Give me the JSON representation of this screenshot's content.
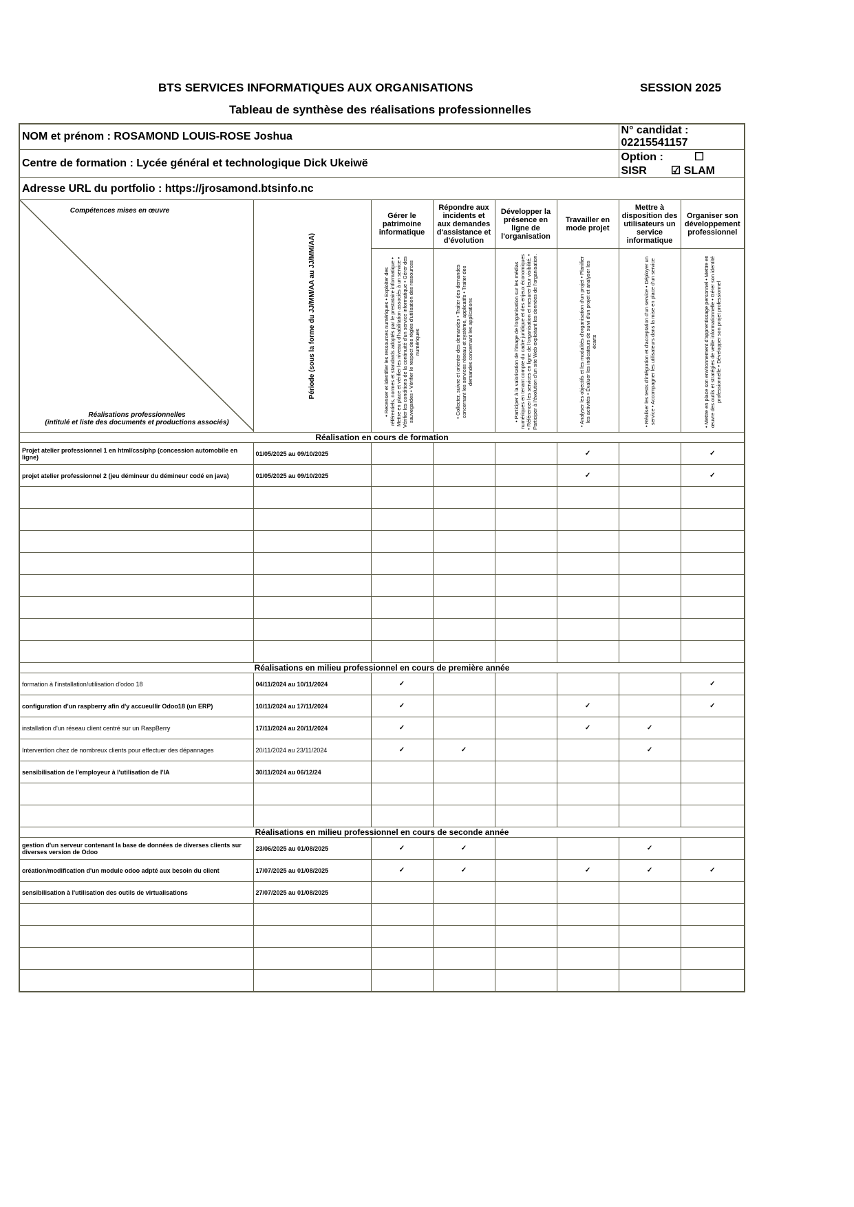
{
  "header": {
    "title": "BTS SERVICES INFORMATIQUES AUX ORGANISATIONS",
    "session": "SESSION 2025",
    "subtitle": "Tableau de synthèse des réalisations professionnelles"
  },
  "identity": {
    "name": "NOM et prénom : ROSAMOND LOUIS-ROSE Joshua",
    "candidate": "N° candidat : 02215541157",
    "centre": "Centre de formation : Lycée général et technologique Dick Ukeiwë",
    "option_label": "Option :",
    "option_sisr": "☐ SISR",
    "option_slam": "☑ SLAM",
    "portfolio": "Adresse URL du portfolio : https://jrosamond.btsinfo.nc"
  },
  "grid": {
    "competences_label": "Compétences mises en œuvre",
    "realisations_label": "Réalisations professionnelles",
    "realisations_sub": "(intitulé et liste des documents et productions associés)",
    "period_label": "Période (sous la forme du JJ/MM/AA au JJ/MM/AA)"
  },
  "competences": [
    {
      "title": "Gérer le patrimoine informatique",
      "details": "• Recenser et identifier les ressources numériques • Exploiter des référentiels, normes et standards adoptés par le prestataire informatique • Mettre en place et vérifier les niveaux d'habilitation associés à un service • Vérifier les conditions de la continuité d'un service informatique • Gérer des sauvegardes • Vérifier le respect des règles d'utilisation des ressources numériques"
    },
    {
      "title": "Répondre aux incidents et aux demandes d'assistance et d'évolution",
      "details": "• Collecter, suivre et orienter des demandes • Traiter des demandes concernant les services réseau et système, applicatifs • Traiter des demandes concernant les applications"
    },
    {
      "title": "Développer la présence en ligne de l'organisation",
      "details": "• Participer à la valorisation de l'image de l'organisation sur les médias numériques en tenant compte du cadre juridique et des enjeux économiques • Référencer les services en ligne de l'organisation et mesurer leur visibilité. • Participer à l'évolution d'un site Web exploitant les données de l'organisation."
    },
    {
      "title": "Travailler en mode projet",
      "details": "• Analyser les objectifs et les modalités d'organisation d'un projet • Planifier les activités • Évaluer les indicateurs de suivi d'un projet et analyser les écarts"
    },
    {
      "title": "Mettre à disposition des utilisateurs un service informatique",
      "details": "• Réaliser les tests d'intégration et d'acceptation d'un service • Déployer un service • Accompagner les utilisateurs dans la mise en place d'un service"
    },
    {
      "title": "Organiser son développement professionnel",
      "details": "• Mettre en place son environnement d'apprentissage personnel • Mettre en œuvre des outils et stratégies de veille informationnelle • Gérer son identité professionnelle • Développer son projet professionnel"
    }
  ],
  "check_mark": "✓",
  "sections": [
    {
      "title": "Réalisation en cours de formation",
      "rows": [
        {
          "label": "Projet atelier professionnel 1 en html/css/php (concession automobile en ligne)",
          "period": "01/05/2025 au 09/10/2025",
          "checks": [
            3,
            5
          ]
        },
        {
          "label": "projet atelier professionnel 2 (jeu démineur du démineur codé en java)",
          "period": "01/05/2025 au 09/10/2025",
          "checks": [
            3,
            5
          ]
        },
        {
          "label": "",
          "period": "",
          "checks": []
        },
        {
          "label": "",
          "period": "",
          "checks": []
        },
        {
          "label": "",
          "period": "",
          "checks": []
        },
        {
          "label": "",
          "period": "",
          "checks": []
        },
        {
          "label": "",
          "period": "",
          "checks": []
        },
        {
          "label": "",
          "period": "",
          "checks": []
        },
        {
          "label": "",
          "period": "",
          "checks": []
        },
        {
          "label": "",
          "period": "",
          "checks": []
        }
      ]
    },
    {
      "title": "Réalisations en milieu professionnel en cours de première année",
      "rows": [
        {
          "label": "formation à l'installation/utilisation d'odoo 18",
          "period": "04/11/2024 au 10/11/2024",
          "checks": [
            0,
            5
          ],
          "light": true
        },
        {
          "label": "configuration d'un raspberry afin d'y accueullir Odoo18 (un ERP)",
          "period": "10/11/2024 au 17/11/2024",
          "checks": [
            0,
            3,
            5
          ]
        },
        {
          "label": "installation d'un réseau client centré sur un RaspBerry",
          "period": "17/11/2024 au 20/11/2024",
          "checks": [
            0,
            3,
            4
          ],
          "light": true
        },
        {
          "label": "Intervention chez de nombreux clients pour effectuer des dépannages",
          "period": "20/11/2024 au 23/11/2024",
          "checks": [
            0,
            1,
            4
          ],
          "light": true,
          "lightperiod": true
        },
        {
          "label": "sensibilisation de l'employeur à l'utilisation de l'IA",
          "period": "30/11/2024 au 06/12/24",
          "checks": []
        },
        {
          "label": "",
          "period": "",
          "checks": []
        },
        {
          "label": "",
          "period": "",
          "checks": []
        }
      ]
    },
    {
      "title": "Réalisations en milieu professionnel en cours de seconde année",
      "rows": [
        {
          "label": "gestion d'un serveur contenant la base de données de diverses clients sur diverses version de Odoo",
          "period": "23/06/2025 au 01/08/2025",
          "checks": [
            0,
            1,
            4
          ]
        },
        {
          "label": "création/modification d'un module odoo adpté aux besoin du client",
          "period": "17/07/2025 au 01/08/2025",
          "checks": [
            0,
            1,
            3,
            4,
            5
          ]
        },
        {
          "label": "sensibilisation à l'utilisation des outils de virtualisations",
          "period": "27/07/2025 au 01/08/2025",
          "checks": []
        },
        {
          "label": "",
          "period": "",
          "checks": []
        },
        {
          "label": "",
          "period": "",
          "checks": []
        },
        {
          "label": "",
          "period": "",
          "checks": []
        },
        {
          "label": "",
          "period": "",
          "checks": []
        }
      ]
    }
  ]
}
